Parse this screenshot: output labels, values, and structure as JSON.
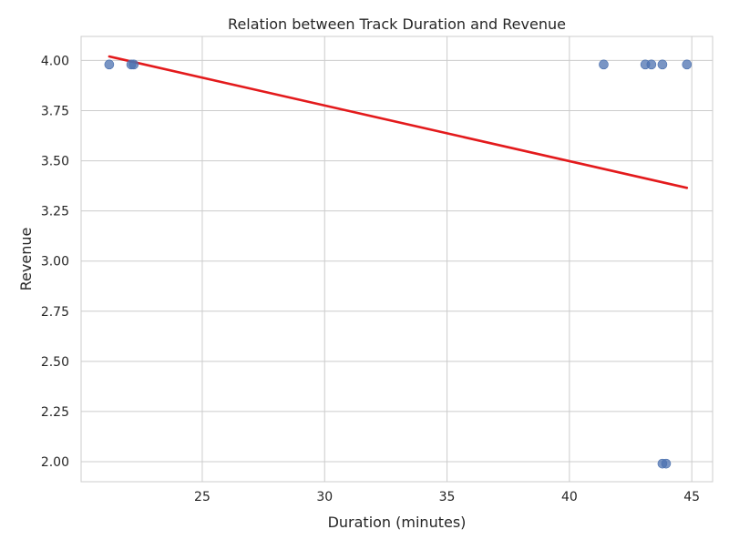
{
  "chart_data": {
    "type": "scatter",
    "title": "Relation between Track Duration and Revenue",
    "xlabel": "Duration (minutes)",
    "ylabel": "Revenue",
    "xlim": [
      20.05,
      45.85
    ],
    "ylim": [
      1.9,
      4.12
    ],
    "xticks": [
      25,
      30,
      35,
      40,
      45
    ],
    "yticks": [
      2.0,
      2.25,
      2.5,
      2.75,
      3.0,
      3.25,
      3.5,
      3.75,
      4.0
    ],
    "ytick_labels": [
      "2.00",
      "2.25",
      "2.50",
      "2.75",
      "3.00",
      "3.25",
      "3.50",
      "3.75",
      "4.00"
    ],
    "xtick_labels": [
      "25",
      "30",
      "35",
      "40",
      "45"
    ],
    "grid": true,
    "points": {
      "x": [
        21.2,
        22.1,
        22.2,
        41.4,
        43.1,
        43.35,
        43.8,
        44.8,
        43.8,
        43.95
      ],
      "y": [
        3.98,
        3.98,
        3.98,
        3.98,
        3.98,
        3.98,
        3.98,
        3.98,
        1.99,
        1.99
      ],
      "color": "#4c72b0"
    },
    "regression_line": {
      "x": [
        21.2,
        44.8
      ],
      "y": [
        4.02,
        3.365
      ],
      "color": "#e31a1c"
    }
  }
}
